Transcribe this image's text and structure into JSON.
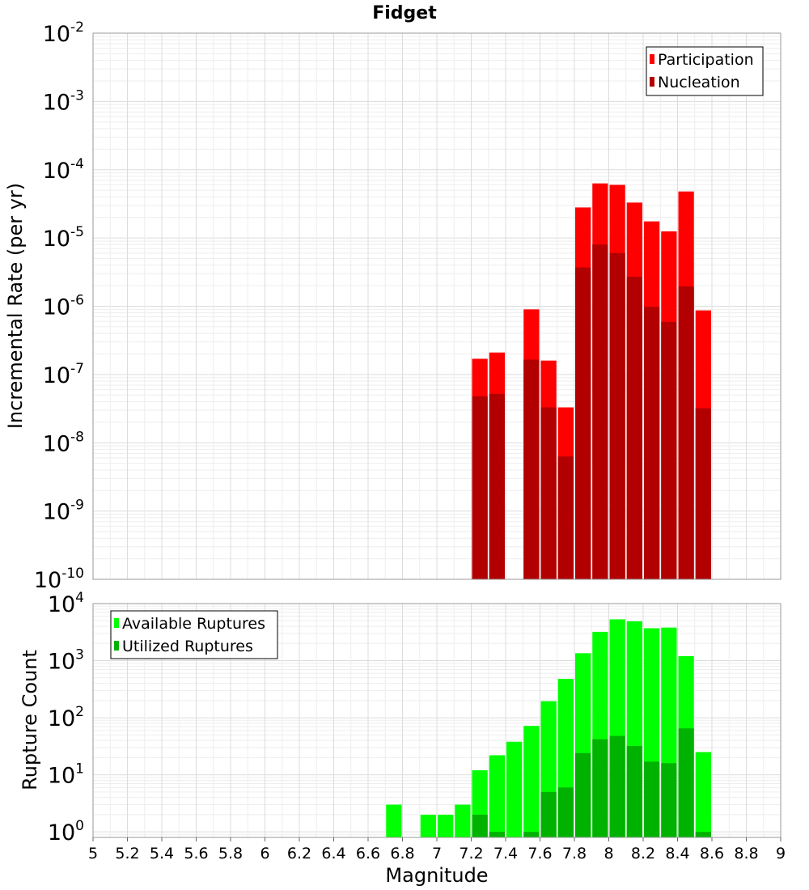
{
  "chart_data": [
    {
      "type": "bar",
      "title": "Fidget",
      "xlabel": "",
      "ylabel": "Incremental Rate (per yr)",
      "yscale": "log",
      "ylim": [
        1e-10,
        0.01
      ],
      "xlim": [
        5,
        9
      ],
      "grid": true,
      "legend_position": "top-right",
      "y_ticks": [
        {
          "base": "10",
          "exp": "-10"
        },
        {
          "base": "10",
          "exp": "-9"
        },
        {
          "base": "10",
          "exp": "-8"
        },
        {
          "base": "10",
          "exp": "-7"
        },
        {
          "base": "10",
          "exp": "-6"
        },
        {
          "base": "10",
          "exp": "-5"
        },
        {
          "base": "10",
          "exp": "-4"
        },
        {
          "base": "10",
          "exp": "-3"
        },
        {
          "base": "10",
          "exp": "-2"
        }
      ],
      "x": [
        7.25,
        7.35,
        7.55,
        7.65,
        7.75,
        7.85,
        7.95,
        8.05,
        8.15,
        8.25,
        8.35,
        8.45,
        8.55
      ],
      "series": [
        {
          "name": "Participation",
          "color": "#ff0000",
          "values": [
            1.7e-07,
            2.1e-07,
            9e-07,
            1.6e-07,
            3.3e-08,
            2.8e-05,
            6.3e-05,
            6e-05,
            3.3e-05,
            1.75e-05,
            1.25e-05,
            4.8e-05,
            8.7e-07
          ]
        },
        {
          "name": "Nucleation",
          "color": "#b20000",
          "values": [
            4.8e-08,
            5.2e-08,
            1.65e-07,
            3.3e-08,
            6.3e-09,
            3.7e-06,
            8e-06,
            6e-06,
            2.7e-06,
            9.8e-07,
            5.9e-07,
            1.95e-06,
            3.2e-08
          ]
        }
      ]
    },
    {
      "type": "bar",
      "title": "",
      "xlabel": "Magnitude",
      "ylabel": "Rupture Count",
      "yscale": "log",
      "ylim": [
        0.8,
        10000
      ],
      "xlim": [
        5,
        9
      ],
      "grid": true,
      "legend_position": "top-left",
      "x_ticks": [
        "5",
        "5.2",
        "5.4",
        "5.6",
        "5.8",
        "6",
        "6.2",
        "6.4",
        "6.6",
        "6.8",
        "7",
        "7.2",
        "7.4",
        "7.6",
        "7.8",
        "8",
        "8.2",
        "8.4",
        "8.6",
        "8.8",
        "9"
      ],
      "y_ticks": [
        {
          "base": "10",
          "exp": "0"
        },
        {
          "base": "10",
          "exp": "1"
        },
        {
          "base": "10",
          "exp": "2"
        },
        {
          "base": "10",
          "exp": "3"
        },
        {
          "base": "10",
          "exp": "4"
        }
      ],
      "x": [
        6.75,
        6.95,
        7.05,
        7.15,
        7.25,
        7.35,
        7.45,
        7.55,
        7.65,
        7.75,
        7.85,
        7.95,
        8.05,
        8.15,
        8.25,
        8.35,
        8.45,
        8.55
      ],
      "series": [
        {
          "name": "Available Ruptures",
          "color": "#00ff00",
          "values": [
            3,
            2,
            2,
            3,
            12,
            22,
            38,
            72,
            195,
            480,
            1350,
            3200,
            5300,
            4900,
            3700,
            3800,
            1200,
            25
          ]
        },
        {
          "name": "Utilized Ruptures",
          "color": "#00b200",
          "values": [
            null,
            null,
            null,
            null,
            2,
            1,
            null,
            1,
            5,
            6,
            24,
            42,
            48,
            32,
            17,
            16,
            65,
            1
          ]
        }
      ]
    }
  ]
}
